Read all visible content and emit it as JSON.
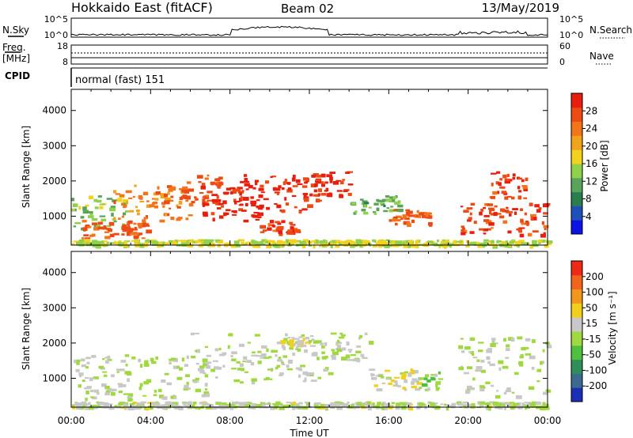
{
  "header": {
    "station": "Hokkaido East (fitACF)",
    "beam": "Beam 02",
    "date": "13/May/2019"
  },
  "strips": {
    "nsky_label": "N.Sky",
    "nsearch_label": "N.Search",
    "nsky_ticks": [
      "10^5",
      "10^0"
    ],
    "nsearch_ticks": [
      "10^5",
      "10^0"
    ],
    "freq_label_line1": "Freq.",
    "freq_label_line2": "[MHz]",
    "freq_ticks": [
      "18",
      "8"
    ],
    "nave_label": "Nave",
    "nave_ticks": [
      "60",
      "0"
    ],
    "cpid_label": "CPID",
    "cpid_value": "normal (fast) 151"
  },
  "axes": {
    "ylabel": "Slant Range [km]",
    "xlabel": "Time UT",
    "yticks": [
      "1000",
      "2000",
      "3000",
      "4000"
    ],
    "xticks": [
      "00:00",
      "04:00",
      "08:00",
      "12:00",
      "16:00",
      "20:00",
      "00:00"
    ]
  },
  "power_scale": {
    "label": "Power [dB]",
    "ticks": [
      "4",
      "8",
      "12",
      "16",
      "20",
      "24",
      "28"
    ],
    "colors": [
      "#0a14e6",
      "#1f4fb8",
      "#2a7d4f",
      "#5aa35a",
      "#8fd14a",
      "#f2d21c",
      "#f2a31c",
      "#f2751c",
      "#ee4a14",
      "#e81e0e"
    ]
  },
  "velocity_scale": {
    "label": "Velocity [m s⁻¹]",
    "ticks": [
      "200",
      "100",
      "50",
      "15",
      "-15",
      "-50",
      "-100",
      "-200"
    ],
    "colors": [
      "#1a2fb8",
      "#3a6b8f",
      "#2f8f5a",
      "#4fbf3f",
      "#9fd93f",
      "#c8c8c8",
      "#f2cf1c",
      "#f2961c",
      "#f2641c",
      "#ee2a14"
    ]
  },
  "chart_data": [
    {
      "type": "heatmap",
      "title": "Power [dB]",
      "xlabel": "Time UT",
      "ylabel": "Slant Range [km]",
      "xlim": [
        0,
        24
      ],
      "ylim": [
        180,
        4600
      ],
      "zlim": [
        0,
        32
      ],
      "regions": [
        {
          "t0": 0.0,
          "t1": 2.8,
          "r0": 600,
          "r1": 1600,
          "z": 14
        },
        {
          "t0": 0.5,
          "t1": 3.8,
          "r0": 400,
          "r1": 900,
          "z": 26
        },
        {
          "t0": 2.0,
          "t1": 6.0,
          "r0": 900,
          "r1": 1900,
          "z": 24
        },
        {
          "t0": 5.5,
          "t1": 7.5,
          "r0": 1400,
          "r1": 2200,
          "z": 26
        },
        {
          "t0": 6.5,
          "t1": 9.5,
          "r0": 900,
          "r1": 1900,
          "z": 30
        },
        {
          "t0": 8.0,
          "t1": 12.5,
          "r0": 1100,
          "r1": 2200,
          "z": 30
        },
        {
          "t0": 9.5,
          "t1": 11.5,
          "r0": 500,
          "r1": 900,
          "z": 28
        },
        {
          "t0": 12.0,
          "t1": 14.0,
          "r0": 1600,
          "r1": 2300,
          "z": 30
        },
        {
          "t0": 14.0,
          "t1": 16.5,
          "r0": 1100,
          "r1": 1600,
          "z": 12
        },
        {
          "t0": 16.0,
          "t1": 18.2,
          "r0": 800,
          "r1": 1200,
          "z": 26
        },
        {
          "t0": 19.5,
          "t1": 24.0,
          "r0": 500,
          "r1": 1400,
          "z": 28
        },
        {
          "t0": 21.0,
          "t1": 23.0,
          "r0": 1500,
          "r1": 2300,
          "z": 28
        },
        {
          "t0": 0.0,
          "t1": 24.0,
          "r0": 180,
          "r1": 350,
          "z": 16
        }
      ]
    },
    {
      "type": "heatmap",
      "title": "Velocity [m s⁻¹]",
      "xlabel": "Time UT",
      "ylabel": "Slant Range [km]",
      "xlim": [
        0,
        24
      ],
      "ylim": [
        180,
        4600
      ],
      "zlim": [
        -250,
        250
      ],
      "regions": [
        {
          "t0": 0.0,
          "t1": 7.0,
          "r0": 400,
          "r1": 1700,
          "z": 0
        },
        {
          "t0": 6.0,
          "t1": 13.0,
          "r0": 900,
          "r1": 2300,
          "z": 0
        },
        {
          "t0": 10.5,
          "t1": 12.0,
          "r0": 1900,
          "r1": 2200,
          "z": 40
        },
        {
          "t0": 13.0,
          "t1": 15.0,
          "r0": 1500,
          "r1": 2300,
          "z": 0
        },
        {
          "t0": 15.0,
          "t1": 17.5,
          "r0": 700,
          "r1": 1300,
          "z": 40
        },
        {
          "t0": 17.5,
          "t1": 18.5,
          "r0": 700,
          "r1": 1200,
          "z": -30
        },
        {
          "t0": 19.5,
          "t1": 24.0,
          "r0": 500,
          "r1": 2200,
          "z": 0
        },
        {
          "t0": 0.0,
          "t1": 24.0,
          "r0": 180,
          "r1": 350,
          "z": 10
        }
      ]
    }
  ]
}
